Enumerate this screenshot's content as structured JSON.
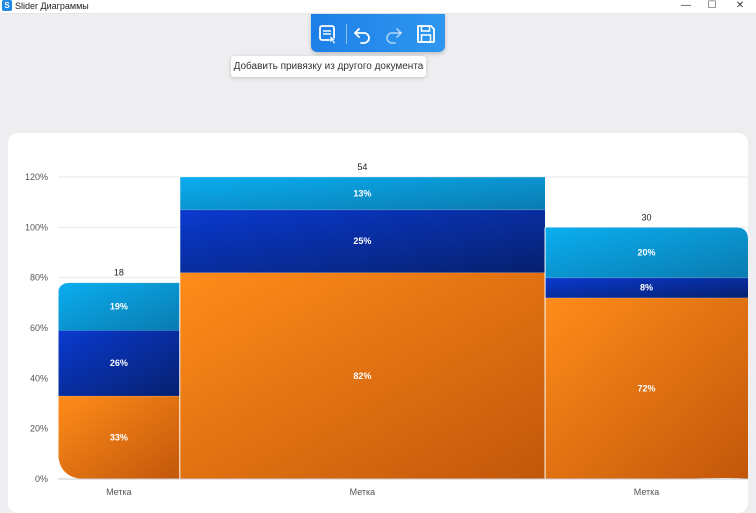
{
  "window": {
    "title": "Slider Диаграммы",
    "logo_letter": "S",
    "minimize": "—",
    "maximize": "☐",
    "close": "✕"
  },
  "toolbar": {
    "tooltip": "Добавить привязку из другого документа"
  },
  "icons": {
    "add_link": "link-document-icon",
    "undo": "undo-icon",
    "redo": "redo-icon",
    "save": "save-icon"
  },
  "colors": {
    "orange": "#f58a1f",
    "dark_blue": "#0a37c8",
    "cyan": "#0fa8e8",
    "accent": "#1d7fe7"
  },
  "chart_data": {
    "type": "bar",
    "variant": "stacked mekko",
    "categories": [
      "Метка",
      "Метка",
      "Метка"
    ],
    "totals": [
      "18",
      "54",
      "30"
    ],
    "widths": [
      18,
      54,
      30
    ],
    "series": [
      {
        "name": "orange",
        "values": [
          33,
          82,
          72
        ],
        "labels": [
          "33%",
          "82%",
          "72%"
        ]
      },
      {
        "name": "dark-blue",
        "values": [
          26,
          25,
          8
        ],
        "labels": [
          "26%",
          "25%",
          "8%"
        ]
      },
      {
        "name": "cyan",
        "values": [
          19,
          13,
          20
        ],
        "labels": [
          "19%",
          "13%",
          "20%"
        ]
      }
    ],
    "y_ticks": [
      "0%",
      "20%",
      "40%",
      "60%",
      "80%",
      "100%",
      "120%"
    ],
    "ylim": [
      0,
      120
    ],
    "grid": true
  }
}
